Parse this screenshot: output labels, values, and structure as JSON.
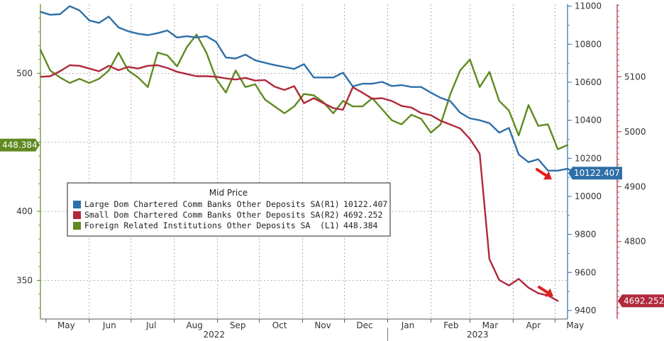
{
  "chart_data": {
    "type": "line",
    "x_axis": {
      "months": [
        "May",
        "Jun",
        "Jul",
        "Aug",
        "Sep",
        "Oct",
        "Nov",
        "Dec",
        "Jan",
        "Feb",
        "Mar",
        "Apr",
        "May"
      ],
      "years": [
        "2022",
        "2023"
      ],
      "range": [
        "2022-04-27",
        "2023-05-10"
      ]
    },
    "axes": {
      "left": {
        "name": "L1",
        "ylim": [
          322,
          550
        ],
        "ticks": [
          350,
          400,
          450,
          500
        ],
        "color": "#5f8a1f"
      },
      "right1": {
        "name": "R1",
        "ylim": [
          9355,
          11010
        ],
        "ticks": [
          9400,
          9600,
          9800,
          10000,
          10200,
          10400,
          10600,
          10800,
          11000
        ],
        "color": "#2e6fa7"
      },
      "right2": {
        "name": "R2",
        "ylim": [
          4659,
          5232
        ],
        "ticks": [
          4800,
          4900,
          5000,
          5100
        ],
        "color": "#b0283c"
      }
    },
    "legend": {
      "title": "Mid Price",
      "position": "center-left"
    },
    "series": [
      {
        "name": "Large Dom Chartered Comm Banks Other Deposits SA",
        "axis": "R1",
        "axis_label": "(R1)",
        "last_label": "10122.407",
        "color": "#2e6fa7",
        "points": [
          [
            "2022-04-27",
            10970
          ],
          [
            "2022-05-04",
            10955
          ],
          [
            "2022-05-11",
            10958
          ],
          [
            "2022-05-18",
            11000
          ],
          [
            "2022-05-25",
            10978
          ],
          [
            "2022-06-01",
            10925
          ],
          [
            "2022-06-08",
            10912
          ],
          [
            "2022-06-15",
            10945
          ],
          [
            "2022-06-22",
            10888
          ],
          [
            "2022-06-29",
            10868
          ],
          [
            "2022-07-06",
            10855
          ],
          [
            "2022-07-13",
            10848
          ],
          [
            "2022-07-20",
            10858
          ],
          [
            "2022-07-27",
            10872
          ],
          [
            "2022-08-03",
            10835
          ],
          [
            "2022-08-10",
            10842
          ],
          [
            "2022-08-17",
            10835
          ],
          [
            "2022-08-24",
            10842
          ],
          [
            "2022-08-31",
            10812
          ],
          [
            "2022-09-07",
            10730
          ],
          [
            "2022-09-14",
            10725
          ],
          [
            "2022-09-21",
            10745
          ],
          [
            "2022-09-28",
            10715
          ],
          [
            "2022-10-05",
            10702
          ],
          [
            "2022-10-12",
            10690
          ],
          [
            "2022-10-19",
            10680
          ],
          [
            "2022-10-26",
            10670
          ],
          [
            "2022-11-02",
            10695
          ],
          [
            "2022-11-09",
            10625
          ],
          [
            "2022-11-16",
            10625
          ],
          [
            "2022-11-23",
            10625
          ],
          [
            "2022-11-30",
            10650
          ],
          [
            "2022-12-07",
            10578
          ],
          [
            "2022-12-14",
            10592
          ],
          [
            "2022-12-21",
            10592
          ],
          [
            "2022-12-28",
            10602
          ],
          [
            "2023-01-04",
            10580
          ],
          [
            "2023-01-11",
            10585
          ],
          [
            "2023-01-18",
            10575
          ],
          [
            "2023-01-25",
            10575
          ],
          [
            "2023-02-01",
            10545
          ],
          [
            "2023-02-08",
            10518
          ],
          [
            "2023-02-15",
            10500
          ],
          [
            "2023-02-22",
            10440
          ],
          [
            "2023-03-01",
            10410
          ],
          [
            "2023-03-08",
            10400
          ],
          [
            "2023-03-15",
            10385
          ],
          [
            "2023-03-22",
            10335
          ],
          [
            "2023-03-29",
            10360
          ],
          [
            "2023-04-05",
            10220
          ],
          [
            "2023-04-12",
            10180
          ],
          [
            "2023-04-19",
            10195
          ],
          [
            "2023-04-26",
            10135
          ],
          [
            "2023-05-03",
            10135
          ],
          [
            "2023-05-10",
            10145
          ],
          [
            "2023-05-17",
            10122
          ]
        ]
      },
      {
        "name": "Small Dom Chartered Comm Banks Other Deposits SA",
        "axis": "R2",
        "axis_label": "(R2)",
        "last_label": "4692.252",
        "color": "#b0283c",
        "points": [
          [
            "2022-04-27",
            5100
          ],
          [
            "2022-05-04",
            5101
          ],
          [
            "2022-05-11",
            5110
          ],
          [
            "2022-05-18",
            5121
          ],
          [
            "2022-05-25",
            5120
          ],
          [
            "2022-06-01",
            5115
          ],
          [
            "2022-06-08",
            5110
          ],
          [
            "2022-06-15",
            5120
          ],
          [
            "2022-06-22",
            5112
          ],
          [
            "2022-06-29",
            5118
          ],
          [
            "2022-07-06",
            5115
          ],
          [
            "2022-07-13",
            5120
          ],
          [
            "2022-07-20",
            5121
          ],
          [
            "2022-07-27",
            5116
          ],
          [
            "2022-08-03",
            5109
          ],
          [
            "2022-08-10",
            5105
          ],
          [
            "2022-08-17",
            5101
          ],
          [
            "2022-08-24",
            5101
          ],
          [
            "2022-08-31",
            5100
          ],
          [
            "2022-09-07",
            5097
          ],
          [
            "2022-09-14",
            5095
          ],
          [
            "2022-09-21",
            5098
          ],
          [
            "2022-09-28",
            5093
          ],
          [
            "2022-10-05",
            5094
          ],
          [
            "2022-10-12",
            5082
          ],
          [
            "2022-10-19",
            5076
          ],
          [
            "2022-10-26",
            5083
          ],
          [
            "2022-11-02",
            5052
          ],
          [
            "2022-11-09",
            5061
          ],
          [
            "2022-11-16",
            5052
          ],
          [
            "2022-11-23",
            5043
          ],
          [
            "2022-11-30",
            5040
          ],
          [
            "2022-12-07",
            5081
          ],
          [
            "2022-12-14",
            5071
          ],
          [
            "2022-12-21",
            5060
          ],
          [
            "2022-12-28",
            5061
          ],
          [
            "2023-01-04",
            5056
          ],
          [
            "2023-01-11",
            5047
          ],
          [
            "2023-01-18",
            5044
          ],
          [
            "2023-01-25",
            5034
          ],
          [
            "2023-02-01",
            5030
          ],
          [
            "2023-02-08",
            5020
          ],
          [
            "2023-02-15",
            5013
          ],
          [
            "2023-02-22",
            5006
          ],
          [
            "2023-03-01",
            4987
          ],
          [
            "2023-03-08",
            4960
          ],
          [
            "2023-03-15",
            4768
          ],
          [
            "2023-03-22",
            4730
          ],
          [
            "2023-03-29",
            4720
          ],
          [
            "2023-04-05",
            4732
          ],
          [
            "2023-04-12",
            4716
          ],
          [
            "2023-04-19",
            4706
          ],
          [
            "2023-04-26",
            4702
          ],
          [
            "2023-05-03",
            4692
          ]
        ]
      },
      {
        "name": "Foreign Related Institutions Other Deposits SA",
        "axis": "L1",
        "axis_label": "(L1)",
        "last_label": "448.384",
        "color": "#5f8a1f",
        "points": [
          [
            "2022-04-27",
            517
          ],
          [
            "2022-05-04",
            502
          ],
          [
            "2022-05-11",
            497
          ],
          [
            "2022-05-18",
            493
          ],
          [
            "2022-05-25",
            496
          ],
          [
            "2022-06-01",
            493
          ],
          [
            "2022-06-08",
            496
          ],
          [
            "2022-06-15",
            502
          ],
          [
            "2022-06-22",
            515
          ],
          [
            "2022-06-29",
            502
          ],
          [
            "2022-07-06",
            497
          ],
          [
            "2022-07-13",
            490
          ],
          [
            "2022-07-20",
            515
          ],
          [
            "2022-07-27",
            513
          ],
          [
            "2022-08-03",
            505
          ],
          [
            "2022-08-10",
            519
          ],
          [
            "2022-08-17",
            528
          ],
          [
            "2022-08-24",
            515
          ],
          [
            "2022-08-31",
            496
          ],
          [
            "2022-09-07",
            486
          ],
          [
            "2022-09-14",
            502
          ],
          [
            "2022-09-21",
            490
          ],
          [
            "2022-09-28",
            492
          ],
          [
            "2022-10-05",
            481
          ],
          [
            "2022-10-12",
            476
          ],
          [
            "2022-10-19",
            471
          ],
          [
            "2022-10-26",
            476
          ],
          [
            "2022-11-02",
            485
          ],
          [
            "2022-11-09",
            484
          ],
          [
            "2022-11-16",
            479
          ],
          [
            "2022-11-23",
            471
          ],
          [
            "2022-11-30",
            480
          ],
          [
            "2022-12-07",
            476
          ],
          [
            "2022-12-14",
            476
          ],
          [
            "2022-12-21",
            482
          ],
          [
            "2022-12-28",
            474
          ],
          [
            "2023-01-04",
            466
          ],
          [
            "2023-01-11",
            463
          ],
          [
            "2023-01-18",
            470
          ],
          [
            "2023-01-25",
            467
          ],
          [
            "2023-02-01",
            457
          ],
          [
            "2023-02-08",
            463
          ],
          [
            "2023-02-15",
            485
          ],
          [
            "2023-02-22",
            502
          ],
          [
            "2023-03-01",
            510
          ],
          [
            "2023-03-08",
            490
          ],
          [
            "2023-03-15",
            501
          ],
          [
            "2023-03-22",
            480
          ],
          [
            "2023-03-29",
            473
          ],
          [
            "2023-04-05",
            455
          ],
          [
            "2023-04-12",
            477
          ],
          [
            "2023-04-19",
            462
          ],
          [
            "2023-04-26",
            463
          ],
          [
            "2023-05-03",
            445
          ],
          [
            "2023-05-10",
            448
          ]
        ]
      }
    ]
  }
}
